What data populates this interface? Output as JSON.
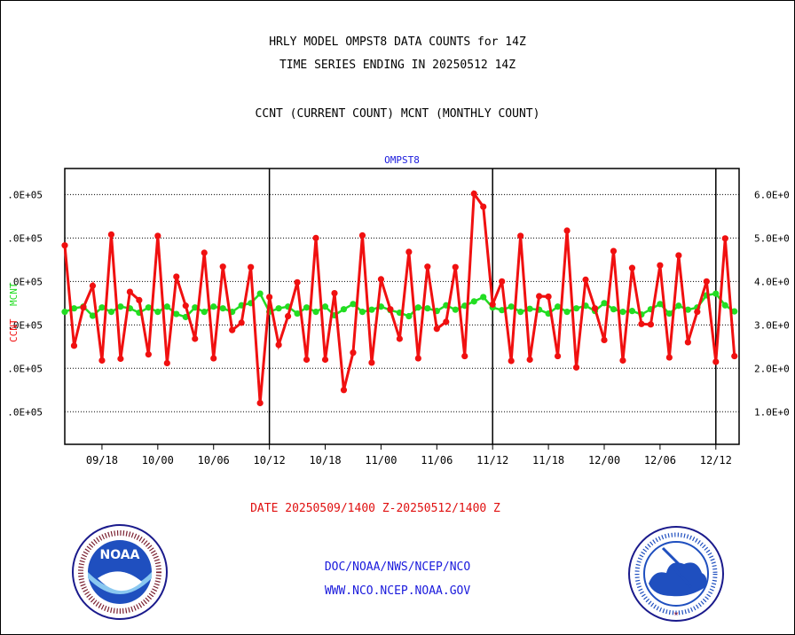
{
  "header": {
    "title_line1": "HRLY MODEL OMPST8 DATA COUNTS for 14Z",
    "title_line2": "TIME SERIES ENDING IN 20250512 14Z",
    "subtitle": "CCNT (CURRENT COUNT) MCNT (MONTHLY COUNT)"
  },
  "footer": {
    "date_range": "DATE 20250509/1400 Z-20250512/1400 Z",
    "org_line": "DOC/NOAA/NWS/NCEP/NCO",
    "url_line": "WWW.NCO.NCEP.NOAA.GOV"
  },
  "logos": {
    "left_text": "NOAA",
    "right_text": "NATIONAL WEATHER SERVICE"
  },
  "colors": {
    "ccnt": "#f01010",
    "mcnt": "#22dd22",
    "axis_title": "#1a1adc",
    "grid": "#000000"
  },
  "chart_data": {
    "type": "line",
    "title": "OMPST8",
    "ylabel_left": "CCNT  MCNT",
    "left_tick_labels": [
      ".0E+05",
      ".0E+05",
      ".0E+05",
      ".0E+05",
      ".0E+05",
      ".0E+05"
    ],
    "right_tick_labels": [
      "6.0E+0",
      "5.0E+0",
      "4.0E+0",
      "3.0E+0",
      "2.0E+0",
      "1.0E+0"
    ],
    "y_tick_values": [
      600000,
      500000,
      400000,
      300000,
      200000,
      100000
    ],
    "ylim": [
      25000,
      660000
    ],
    "x_tick_labels": [
      "09/18",
      "10/00",
      "10/06",
      "10/12",
      "10/18",
      "11/00",
      "11/06",
      "11/12",
      "11/18",
      "12/00",
      "12/06",
      "12/12"
    ],
    "x_tick_hours": [
      4,
      10,
      16,
      22,
      28,
      34,
      40,
      46,
      52,
      58,
      64,
      70
    ],
    "xlim": [
      0,
      72.5
    ],
    "day_boundaries": [
      22,
      46,
      70
    ],
    "grid": "horizontal dotted",
    "series": [
      {
        "name": "CCNT",
        "x": [
          0,
          1,
          2,
          3,
          4,
          5,
          6,
          7,
          8,
          9,
          10,
          11,
          12,
          13,
          14,
          15,
          16,
          17,
          18,
          19,
          20,
          21,
          22,
          23,
          24,
          25,
          26,
          27,
          28,
          29,
          30,
          31,
          32,
          33,
          34,
          35,
          36,
          37,
          38,
          39,
          40,
          41,
          42,
          43,
          44,
          45,
          46,
          47,
          48,
          49,
          50,
          51,
          52,
          53,
          54,
          55,
          56,
          57,
          58,
          59,
          60,
          61,
          62,
          63,
          64,
          65,
          66,
          67,
          68,
          69,
          70,
          71,
          72
        ],
        "values": [
          483000,
          252000,
          340000,
          390000,
          218000,
          508000,
          222000,
          376000,
          357000,
          232000,
          505000,
          212000,
          411000,
          344000,
          268000,
          466000,
          223000,
          434000,
          288000,
          305000,
          433000,
          120000,
          364000,
          254000,
          320000,
          398000,
          220000,
          500000,
          220000,
          373000,
          150000,
          236000,
          506000,
          213000,
          405000,
          336000,
          268000,
          468000,
          223000,
          434000,
          291000,
          307000,
          433000,
          228000,
          602000,
          572000,
          347000,
          400000,
          217000,
          505000,
          220000,
          366000,
          365000,
          228000,
          517000,
          202000,
          404000,
          338000,
          265000,
          470000,
          218000,
          431000,
          302000,
          301000,
          437000,
          225000,
          460000,
          260000,
          330000,
          400000,
          215000,
          499000,
          228000
        ]
      },
      {
        "name": "MCNT",
        "x": [
          0,
          1,
          2,
          3,
          4,
          5,
          6,
          7,
          8,
          9,
          10,
          11,
          12,
          13,
          14,
          15,
          16,
          17,
          18,
          19,
          20,
          21,
          22,
          23,
          24,
          25,
          26,
          27,
          28,
          29,
          30,
          31,
          32,
          33,
          34,
          35,
          36,
          37,
          38,
          39,
          40,
          41,
          42,
          43,
          44,
          45,
          46,
          47,
          48,
          49,
          50,
          51,
          52,
          53,
          54,
          55,
          56,
          57,
          58,
          59,
          60,
          61,
          62,
          63,
          64,
          65,
          66,
          67,
          68,
          69,
          70,
          71,
          72
        ],
        "values": [
          330000,
          338000,
          342000,
          321000,
          340000,
          330000,
          342000,
          338000,
          328000,
          340000,
          330000,
          342000,
          325000,
          318000,
          340000,
          330000,
          342000,
          338000,
          330000,
          345000,
          350000,
          372000,
          330000,
          338000,
          342000,
          326000,
          340000,
          330000,
          342000,
          322000,
          336000,
          348000,
          330000,
          335000,
          342000,
          334000,
          328000,
          320000,
          340000,
          338000,
          332000,
          345000,
          335000,
          344000,
          354000,
          364000,
          340000,
          334000,
          342000,
          330000,
          337000,
          335000,
          326000,
          342000,
          330000,
          338000,
          344000,
          332000,
          350000,
          336000,
          330000,
          332000,
          324000,
          336000,
          348000,
          326000,
          344000,
          335000,
          340000,
          368000,
          372000,
          345000,
          331000
        ]
      }
    ]
  }
}
